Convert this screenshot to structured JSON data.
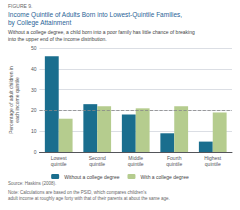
{
  "chart_data": {
    "type": "bar",
    "figure_label": "FIGURE 9.",
    "title": "Income Quintile of Adults Born into Lowest-Quintile Families,\nby College Attainment",
    "subtitle": "Without a college degree, a child born into a poor family has little chance of breaking\ninto the upper end of the income distribution.",
    "categories": [
      "Lowest\nquintile",
      "Second\nquintile",
      "Middle\nquintile",
      "Fourth\nquintile",
      "Highest\nquintile"
    ],
    "series": [
      {
        "name": "Without a college degree",
        "color": "#1a6e8e",
        "values": [
          46,
          23,
          18,
          9,
          5
        ]
      },
      {
        "name": "With a college degree",
        "color": "#b5cc8e",
        "values": [
          16,
          22,
          21,
          22,
          19
        ]
      }
    ],
    "ylabel": "Percentage of adult children in\neach income quintile",
    "ylim": [
      0,
      50
    ],
    "yticks": [
      0,
      10,
      20,
      30,
      40,
      50
    ],
    "reference_line_y": 20,
    "grid": true,
    "legend": "bottom",
    "source": "Source: Haskins (2008).",
    "notes": [
      "Note: Calculations are based on the PSID, which compares children's",
      "adult income at roughly age forty with that of their parents at about the same age."
    ]
  }
}
